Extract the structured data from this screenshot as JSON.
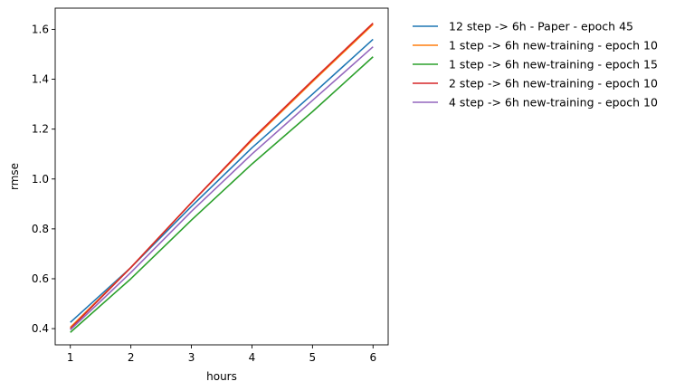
{
  "chart_data": {
    "type": "line",
    "xlabel": "hours",
    "ylabel": "rmse",
    "x": [
      1,
      2,
      3,
      4,
      5,
      6
    ],
    "xlim": [
      0.75,
      6.25
    ],
    "ylim": [
      0.335,
      1.685
    ],
    "xticks": [
      "1",
      "2",
      "3",
      "4",
      "5",
      "6"
    ],
    "yticks": [
      "0.4",
      "0.6",
      "0.8",
      "1.0",
      "1.2",
      "1.4",
      "1.6"
    ],
    "grid": false,
    "legend_position": "outside-right-top",
    "series": [
      {
        "name": "12 step -> 6h - Paper - epoch 45",
        "color": "#1f77b4",
        "values": [
          0.425,
          0.645,
          0.89,
          1.125,
          1.34,
          1.56
        ]
      },
      {
        "name": "1 step -> 6h new-training - epoch 10",
        "color": "#ff7f0e",
        "values": [
          0.405,
          0.645,
          0.905,
          1.155,
          1.39,
          1.62
        ]
      },
      {
        "name": "1 step -> 6h new-training - epoch 15",
        "color": "#2ca02c",
        "values": [
          0.385,
          0.6,
          0.835,
          1.06,
          1.27,
          1.49
        ]
      },
      {
        "name": "2 step -> 6h new-training - epoch 10",
        "color": "#d62728",
        "values": [
          0.4,
          0.645,
          0.905,
          1.16,
          1.395,
          1.625
        ]
      },
      {
        "name": "4 step -> 6h new-training - epoch 10",
        "color": "#9467bd",
        "values": [
          0.395,
          0.625,
          0.87,
          1.1,
          1.315,
          1.53
        ]
      }
    ]
  }
}
